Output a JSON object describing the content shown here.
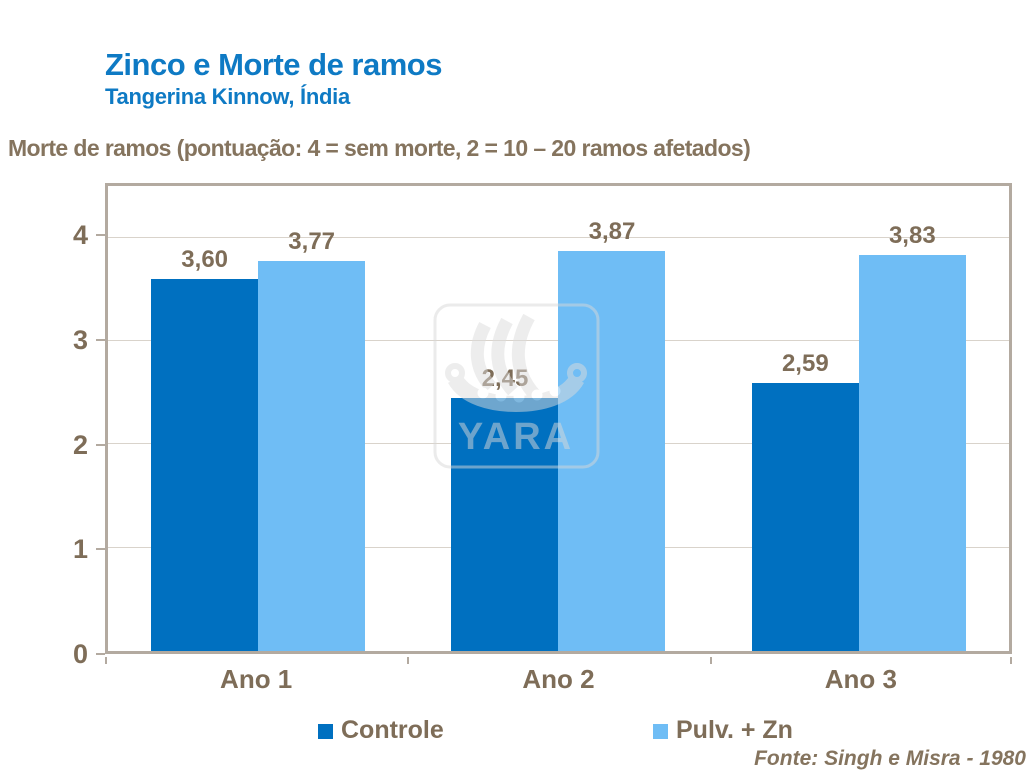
{
  "header": {
    "title": "Zinco e Morte de ramos",
    "subtitle": "Tangerina Kinnow, Índia",
    "axis_note": "Morte de ramos (pontuação: 4 = sem morte, 2 = 10 – 20 ramos afetados)"
  },
  "chart_data": {
    "type": "bar",
    "categories": [
      "Ano 1",
      "Ano 2",
      "Ano 3"
    ],
    "series": [
      {
        "name": "Controle",
        "color": "#0070c0",
        "values": [
          3.6,
          2.45,
          2.59
        ],
        "labels": [
          "3,60",
          "2,45",
          "2,59"
        ]
      },
      {
        "name": "Pulv. + Zn",
        "color": "#6fbdf5",
        "values": [
          3.77,
          3.87,
          3.83
        ],
        "labels": [
          "3,77",
          "3,87",
          "3,83"
        ]
      }
    ],
    "ylim": [
      0,
      4.5
    ],
    "yticks": [
      0,
      1,
      2,
      3,
      4
    ],
    "grid": "horizontal",
    "legend_position": "bottom",
    "value_labels_shown": true
  },
  "watermark": {
    "logo": "yara-logo",
    "text": "YARA"
  },
  "footer": {
    "source": "Fonte: Singh e Misra - 1980"
  },
  "colors": {
    "title_blue": "#0e7ac4",
    "text_brown": "#7e6d58",
    "plot_border": "#b3aaa0",
    "gridline": "#d9d3cb",
    "bar_dark_blue": "#0070c0",
    "bar_light_blue": "#6fbdf5"
  }
}
